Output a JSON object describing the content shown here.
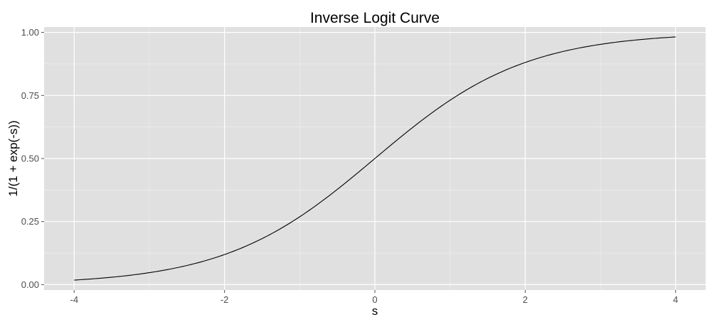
{
  "chart_data": {
    "type": "line",
    "title": "Inverse Logit Curve",
    "xlabel": "s",
    "ylabel": "1/(1 + exp(-s))",
    "xlim": [
      -4.4,
      4.4
    ],
    "ylim": [
      -0.0214,
      1.0214
    ],
    "x_ticks": [
      -4,
      -2,
      0,
      2,
      4
    ],
    "x_tick_labels": [
      "-4",
      "-2",
      "0",
      "2",
      "4"
    ],
    "y_ticks": [
      0,
      0.25,
      0.5,
      0.75,
      1
    ],
    "y_tick_labels": [
      "0.00",
      "0.25",
      "0.50",
      "0.75",
      "1.00"
    ],
    "grid": true,
    "panel_background": "#e0e0e0",
    "grid_color": "#ffffff",
    "line_color": "#000000",
    "series": [
      {
        "function": "1/(1 + exp(-s))",
        "x": [
          -4,
          -3.5,
          -3,
          -2.5,
          -2,
          -1.5,
          -1,
          -0.5,
          0,
          0.5,
          1,
          1.5,
          2,
          2.5,
          3,
          3.5,
          4
        ],
        "y": [
          0.018,
          0.029,
          0.047,
          0.076,
          0.119,
          0.182,
          0.269,
          0.378,
          0.5,
          0.622,
          0.731,
          0.818,
          0.881,
          0.924,
          0.953,
          0.971,
          0.982
        ]
      }
    ]
  }
}
